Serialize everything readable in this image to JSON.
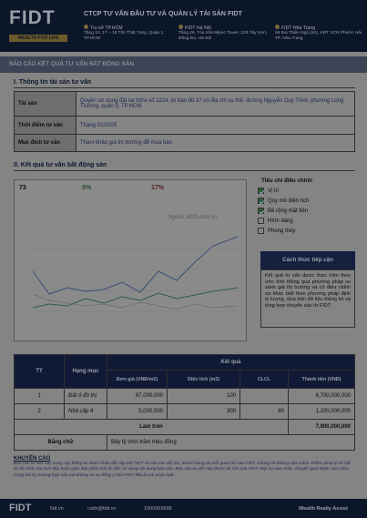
{
  "header": {
    "logo": "FIDT",
    "tagline": "WEALTH FOR LIFE",
    "company": "CTCP TƯ VẤN ĐẦU TƯ VÀ QUẢN LÝ TÀI SẢN FIDT",
    "offices": [
      {
        "name": "Trụ sở TP.HCM",
        "address": "Tầng 10, 17 – 19 Tôn Thất Tùng, Quận 1, TP.HCM"
      },
      {
        "name": "FIDT Hà Nội",
        "address": "Tầng 26, Tòa nhà Mipec Tower, 229 Tây Sơn, Đống Đa, Hà Nội"
      },
      {
        "name": "FIDT Nha Trang",
        "address": "56 Bùi Thiện Ngộ (84), KĐT VCN Phước Hải, TP. Nha Trang"
      }
    ]
  },
  "report_title": "BÁO CÁO KẾT QUẢ TƯ VẤN BẤT ĐỘNG SẢN",
  "section1": {
    "title": "I. Thông tin tài sản tư vấn",
    "rows": [
      [
        "Tài sản",
        "Quyền sử dụng đất tại thửa số 1224, tờ bản đồ 37 có địa chỉ cụ thể: đường Nguyễn Duy Trinh, phường Long Trường, quận 9, TP.HCM"
      ],
      [
        "Thời điểm tư vấn",
        "Tháng 02/2025"
      ],
      [
        "Mục đích tư vấn",
        "Tham khảo giá thị trường để mua bán"
      ]
    ]
  },
  "section2": {
    "title": "II.  Kết quả tư vấn bất động sản",
    "chart": {
      "stats": [
        "73",
        "9%",
        "17%"
      ],
      "source": "Nguồn: BDS.com.vn"
    },
    "criteria": {
      "title": "Tiêu chí điều chỉnh",
      "items": [
        {
          "label": "Vị trí",
          "checked": true
        },
        {
          "label": "Quy mô diện tích",
          "checked": true
        },
        {
          "label": "Bề rộng mặt tiền",
          "checked": true
        },
        {
          "label": "Hình dáng",
          "checked": false
        },
        {
          "label": "Phong thủy",
          "checked": false
        }
      ]
    },
    "approach": {
      "title": "Cách thức tiếp cận",
      "text": "Kết quả tư vấn được thực hiện theo ước tính thông qua phương pháp so sánh giá thị trường và có điều chỉnh sự khác biệt theo phương pháp định tỷ lượng, dựa trên dữ liệu thống kê và tổng hợp chuyên sâu từ FIDT."
    }
  },
  "table": {
    "headers": {
      "tt": "TT",
      "item": "Hạng mục",
      "result": "Kết quả",
      "price": "Đơn giá (VNĐ/m2)",
      "area": "Diện tích (m2)",
      "clcl": "CLCL",
      "total": "Thành tiền (VNĐ)"
    },
    "rows": [
      {
        "tt": "1",
        "item": "Đất ở đô thị",
        "price": "67,000,000",
        "area": "100",
        "total": "6,700,000,000"
      },
      {
        "tt": "2",
        "item": "Nhà cấp 4",
        "price": "5,000,000",
        "area": "300",
        "clcl": "80",
        "total": "1,200,000,000"
      }
    ],
    "rounded": {
      "label": "Làm tròn",
      "value": "7,900,000,000"
    },
    "words": {
      "label": "Bằng chữ",
      "value": "Bảy tỷ chín trăm triệu đồng"
    }
  },
  "recommendation": {
    "title": "KHUYẾN CÁO",
    "text": "Báo cáo tư vấn này cung cấp thông tin tham khảo độc lập bởi FIDT và cho các đối tác, khách hàng và mối quan hệ của FIDT. Chúng tôi không chịu trách nhiệm pháp lý về bất kỳ tổn thất nào trực tiếp hoặc gián tiếp phát sinh từ việc sử dụng nội dung báo cáo. Báo cáo tư vấn này thuộc tài sản của FIDT. Mọi sự sao chép, chuyển giao hoặc sửa chữa trong bất kỳ trường hợp nào mà không có sự đồng ý của FIDT đều là trái pháp luật."
  },
  "footer": {
    "logo": "FIDT",
    "website": "fidt.vn",
    "email": "cskh@fidt.vn",
    "phone": "1900969898",
    "brand": "Wealth Realty Assist"
  }
}
